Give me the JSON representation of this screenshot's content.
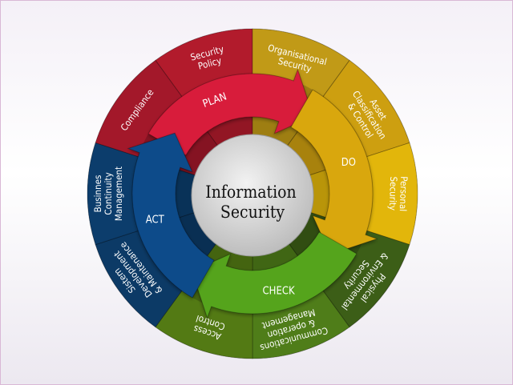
{
  "center": {
    "line1": "Information",
    "line2": "Security"
  },
  "segments": [
    {
      "id": "security-policy",
      "color": "#b21b2c",
      "lines": [
        "Security",
        "Policy"
      ]
    },
    {
      "id": "organisational-security",
      "color": "#c19a17",
      "lines": [
        "Organisational",
        "Security"
      ]
    },
    {
      "id": "asset-classification",
      "color": "#cd9f10",
      "lines": [
        "Asset",
        "Classification",
        "& Control"
      ]
    },
    {
      "id": "personal-security",
      "color": "#e2b60b",
      "lines": [
        "Personal",
        "Security"
      ]
    },
    {
      "id": "physical-environmental",
      "color": "#3c5e17",
      "lines": [
        "Physical",
        "& Environmental",
        "Security"
      ]
    },
    {
      "id": "communications-operation",
      "color": "#4f7d19",
      "lines": [
        "Communications",
        "& operation",
        "Management"
      ]
    },
    {
      "id": "access-control",
      "color": "#537a14",
      "lines": [
        "Access",
        "Control"
      ]
    },
    {
      "id": "development-maintenance",
      "color": "#0c3a66",
      "lines": [
        "Sistem",
        "Development",
        "& Maintenance"
      ]
    },
    {
      "id": "business-continuity",
      "color": "#0c3d6c",
      "lines": [
        "Businnes",
        "Continuity",
        "Management"
      ]
    },
    {
      "id": "compliance",
      "color": "#a3182a",
      "lines": [
        "Compliance"
      ]
    }
  ],
  "cycle": [
    {
      "id": "plan",
      "label": "PLAN",
      "color": "#d81f3a"
    },
    {
      "id": "do",
      "label": "DO",
      "color": "#d9a70b"
    },
    {
      "id": "check",
      "label": "CHECK",
      "color": "#55a41d"
    },
    {
      "id": "act",
      "label": "ACT",
      "color": "#0d4b8a"
    }
  ]
}
